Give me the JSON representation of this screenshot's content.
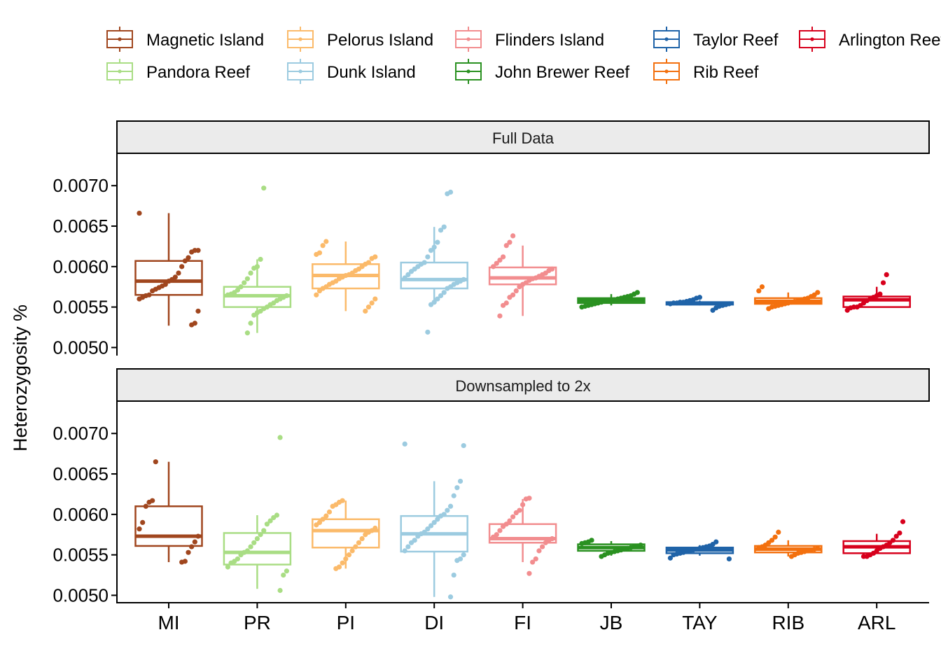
{
  "chart_data": {
    "type": "box",
    "ylabel": "Heterozygosity %",
    "ylim": [
      0.0049,
      0.0074
    ],
    "yticks": [
      "0.0050",
      "0.0055",
      "0.0060",
      "0.0065",
      "0.0070"
    ],
    "ytick_values": [
      0.005,
      0.0055,
      0.006,
      0.0065,
      0.007
    ],
    "categories": [
      "MI",
      "PR",
      "PI",
      "DI",
      "FI",
      "JB",
      "TAY",
      "RIB",
      "ARL"
    ],
    "legend": {
      "position": "top",
      "entries": [
        {
          "name": "Magnetic Island",
          "color": "#A0461E"
        },
        {
          "name": "Pelorus Island",
          "color": "#FBBA6A"
        },
        {
          "name": "Flinders Island",
          "color": "#F28D8F"
        },
        {
          "name": "Taylor Reef",
          "color": "#1F63A8"
        },
        {
          "name": "Arlington Reef",
          "color": "#D7001C"
        },
        {
          "name": "Pandora Reef",
          "color": "#A9DD84"
        },
        {
          "name": "Dunk Island",
          "color": "#9CCBE0"
        },
        {
          "name": "John Brewer Reef",
          "color": "#2A9121"
        },
        {
          "name": "Rib Reef",
          "color": "#F3700E"
        }
      ]
    },
    "series_colors": [
      "#A0461E",
      "#A9DD84",
      "#FBBA6A",
      "#9CCBE0",
      "#F28D8F",
      "#2A9121",
      "#1F63A8",
      "#F3700E",
      "#D7001C"
    ],
    "panels": [
      {
        "title": "Full Data",
        "boxes": [
          {
            "cat": "MI",
            "whislo": 0.00527,
            "q1": 0.00565,
            "med": 0.00582,
            "q3": 0.00607,
            "whishi": 0.00666,
            "points": [
              0.00666,
              0.0062,
              0.0062,
              0.00618,
              0.00611,
              0.00607,
              0.006,
              0.00592,
              0.00587,
              0.00584,
              0.00582,
              0.00578,
              0.00576,
              0.00574,
              0.00572,
              0.0057,
              0.00565,
              0.00564,
              0.00562,
              0.0056,
              0.00545,
              0.0053,
              0.00528
            ]
          },
          {
            "cat": "PR",
            "whislo": 0.00518,
            "q1": 0.0055,
            "med": 0.00564,
            "q3": 0.00575,
            "whishi": 0.00609,
            "points": [
              0.00697,
              0.00609,
              0.006,
              0.00598,
              0.00592,
              0.00585,
              0.0058,
              0.00575,
              0.00571,
              0.00568,
              0.00566,
              0.00565,
              0.00564,
              0.00562,
              0.0056,
              0.00558,
              0.00555,
              0.00553,
              0.0055,
              0.00548,
              0.00545,
              0.00543,
              0.0054,
              0.0053,
              0.00518
            ]
          },
          {
            "cat": "PI",
            "whislo": 0.00545,
            "q1": 0.00573,
            "med": 0.00589,
            "q3": 0.00603,
            "whishi": 0.00631,
            "points": [
              0.00631,
              0.00626,
              0.00617,
              0.00615,
              0.00612,
              0.0061,
              0.00605,
              0.00603,
              0.006,
              0.00597,
              0.00595,
              0.00592,
              0.0059,
              0.00589,
              0.00587,
              0.00585,
              0.00582,
              0.0058,
              0.00578,
              0.00575,
              0.00573,
              0.0057,
              0.00565,
              0.0056,
              0.00555,
              0.0055,
              0.00545
            ]
          },
          {
            "cat": "DI",
            "whislo": 0.00553,
            "q1": 0.00573,
            "med": 0.00584,
            "q3": 0.00605,
            "whishi": 0.00649,
            "points": [
              0.00692,
              0.0069,
              0.00649,
              0.00645,
              0.0063,
              0.00624,
              0.0062,
              0.00612,
              0.00605,
              0.00603,
              0.006,
              0.00597,
              0.00594,
              0.0059,
              0.00586,
              0.00584,
              0.00582,
              0.0058,
              0.00578,
              0.00575,
              0.00573,
              0.00568,
              0.00564,
              0.0056,
              0.00556,
              0.00553,
              0.00519
            ]
          },
          {
            "cat": "FI",
            "whislo": 0.00539,
            "q1": 0.00578,
            "med": 0.00586,
            "q3": 0.00599,
            "whishi": 0.00626,
            "points": [
              0.00638,
              0.0063,
              0.00626,
              0.00612,
              0.00608,
              0.00604,
              0.006,
              0.00597,
              0.00595,
              0.00592,
              0.0059,
              0.00588,
              0.00586,
              0.00585,
              0.00583,
              0.0058,
              0.00578,
              0.00575,
              0.0057,
              0.00565,
              0.00562,
              0.00555,
              0.00552,
              0.00539
            ]
          },
          {
            "cat": "JB",
            "whislo": 0.00552,
            "q1": 0.00555,
            "med": 0.00558,
            "q3": 0.00561,
            "whishi": 0.00566,
            "points": [
              0.00568,
              0.00566,
              0.00564,
              0.00563,
              0.00562,
              0.00561,
              0.0056,
              0.00559,
              0.00558,
              0.00558,
              0.00557,
              0.00556,
              0.00555,
              0.00554,
              0.00553,
              0.00552,
              0.00551,
              0.0055
            ]
          },
          {
            "cat": "TAY",
            "whislo": 0.00552,
            "q1": 0.00553,
            "med": 0.00555,
            "q3": 0.00556,
            "whishi": 0.00558,
            "points": [
              0.00562,
              0.00561,
              0.00559,
              0.00558,
              0.00557,
              0.00556,
              0.00556,
              0.00555,
              0.00555,
              0.00554,
              0.00554,
              0.00553,
              0.00552,
              0.00551,
              0.00549,
              0.00546
            ]
          },
          {
            "cat": "RIB",
            "whislo": 0.00552,
            "q1": 0.00554,
            "med": 0.00557,
            "q3": 0.00561,
            "whishi": 0.00568,
            "points": [
              0.00575,
              0.0057,
              0.00568,
              0.00565,
              0.00563,
              0.00561,
              0.0056,
              0.00559,
              0.00558,
              0.00557,
              0.00556,
              0.00555,
              0.00554,
              0.00553,
              0.00552,
              0.00551,
              0.0055,
              0.00548
            ]
          },
          {
            "cat": "ARL",
            "whislo": 0.0055,
            "q1": 0.0055,
            "med": 0.00559,
            "q3": 0.00563,
            "whishi": 0.00575,
            "points": [
              0.0059,
              0.0058,
              0.00566,
              0.00564,
              0.00562,
              0.0056,
              0.00558,
              0.00555,
              0.00552,
              0.0055,
              0.0055,
              0.00549,
              0.00546
            ]
          }
        ]
      },
      {
        "title": "Downsampled to 2x",
        "boxes": [
          {
            "cat": "MI",
            "whislo": 0.00541,
            "q1": 0.00561,
            "med": 0.00573,
            "q3": 0.0061,
            "whishi": 0.00665,
            "points": [
              0.00665,
              0.00617,
              0.00615,
              0.0061,
              0.0059,
              0.00582,
              0.00573,
              0.00566,
              0.0056,
              0.00553,
              0.00542,
              0.00541
            ]
          },
          {
            "cat": "PR",
            "whislo": 0.00508,
            "q1": 0.00538,
            "med": 0.00553,
            "q3": 0.00577,
            "whishi": 0.00599,
            "points": [
              0.00695,
              0.00599,
              0.00596,
              0.00592,
              0.00588,
              0.0058,
              0.00575,
              0.0057,
              0.00565,
              0.0056,
              0.00555,
              0.00553,
              0.0055,
              0.00545,
              0.00542,
              0.0054,
              0.00535,
              0.0053,
              0.00525,
              0.00506
            ]
          },
          {
            "cat": "PI",
            "whislo": 0.00533,
            "q1": 0.00559,
            "med": 0.0058,
            "q3": 0.00594,
            "whishi": 0.00617,
            "points": [
              0.00617,
              0.00615,
              0.00612,
              0.0061,
              0.00603,
              0.00598,
              0.00594,
              0.0059,
              0.00587,
              0.00583,
              0.0058,
              0.00578,
              0.00575,
              0.0057,
              0.00565,
              0.0056,
              0.00555,
              0.0055,
              0.00545,
              0.0054,
              0.00535,
              0.00533
            ]
          },
          {
            "cat": "DI",
            "whislo": 0.00498,
            "q1": 0.00554,
            "med": 0.00576,
            "q3": 0.00598,
            "whishi": 0.00641,
            "points": [
              0.00687,
              0.00685,
              0.00641,
              0.00633,
              0.00623,
              0.0061,
              0.00605,
              0.006,
              0.00598,
              0.00594,
              0.0059,
              0.00586,
              0.00582,
              0.00578,
              0.00576,
              0.00573,
              0.00568,
              0.00565,
              0.0056,
              0.00555,
              0.0055,
              0.00545,
              0.00543,
              0.00525,
              0.00498
            ]
          },
          {
            "cat": "FI",
            "whislo": 0.00541,
            "q1": 0.00565,
            "med": 0.0057,
            "q3": 0.00588,
            "whishi": 0.00619,
            "points": [
              0.0062,
              0.00619,
              0.00612,
              0.00605,
              0.00602,
              0.00597,
              0.00592,
              0.00588,
              0.00585,
              0.0058,
              0.00575,
              0.00572,
              0.0057,
              0.00568,
              0.00565,
              0.0056,
              0.00555,
              0.00545,
              0.00541,
              0.00527
            ]
          },
          {
            "cat": "JB",
            "whislo": 0.00549,
            "q1": 0.00555,
            "med": 0.00559,
            "q3": 0.00563,
            "whishi": 0.00567,
            "points": [
              0.00568,
              0.00566,
              0.00565,
              0.00564,
              0.00562,
              0.00561,
              0.0056,
              0.00559,
              0.00558,
              0.00557,
              0.00556,
              0.00555,
              0.00554,
              0.00553,
              0.00552,
              0.0055,
              0.00548
            ]
          },
          {
            "cat": "TAY",
            "whislo": 0.00549,
            "q1": 0.00552,
            "med": 0.00556,
            "q3": 0.00559,
            "whishi": 0.00562,
            "points": [
              0.00566,
              0.00563,
              0.00561,
              0.0056,
              0.00559,
              0.00558,
              0.00557,
              0.00556,
              0.00555,
              0.00554,
              0.00553,
              0.00552,
              0.00551,
              0.0055,
              0.00546,
              0.00545
            ]
          },
          {
            "cat": "RIB",
            "whislo": 0.00548,
            "q1": 0.00553,
            "med": 0.00557,
            "q3": 0.00561,
            "whishi": 0.00568,
            "points": [
              0.00578,
              0.00572,
              0.00568,
              0.00565,
              0.00562,
              0.0056,
              0.00559,
              0.00558,
              0.00557,
              0.00556,
              0.00555,
              0.00554,
              0.00553,
              0.00552,
              0.0055,
              0.00548
            ]
          },
          {
            "cat": "ARL",
            "whislo": 0.00552,
            "q1": 0.00552,
            "med": 0.0056,
            "q3": 0.00567,
            "whishi": 0.00576,
            "points": [
              0.00591,
              0.00577,
              0.00573,
              0.00568,
              0.00565,
              0.00562,
              0.0056,
              0.00558,
              0.00555,
              0.00552,
              0.0055,
              0.00548,
              0.00548
            ]
          }
        ]
      }
    ]
  }
}
